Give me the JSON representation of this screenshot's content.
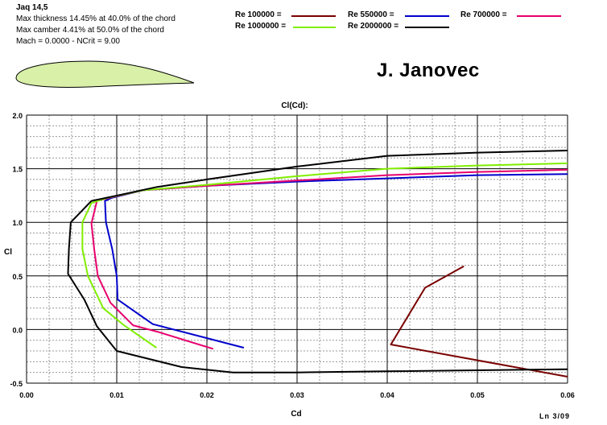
{
  "info": {
    "airfoil": "Jaq 14,5",
    "thickness": "Max thickness 14.45% at 40.0% of the chord",
    "camber": "Max camber 4.41% at 50.0% of the chord",
    "mach": "Mach = 0.0000 - NCrit = 9.00"
  },
  "author": "J. Janovec",
  "footer": "Ln 3/09",
  "colors": {
    "re100000": "#7a0000",
    "re550000": "#0000cc",
    "re700000": "#e8006e",
    "re1000000": "#80ee00",
    "re2000000": "#000000",
    "grid": "#999999",
    "airfoil_fill": "#d8f0a8"
  },
  "legend": [
    {
      "label": "Re 100000 =",
      "color": "#7a0000"
    },
    {
      "label": "Re 550000 =",
      "color": "#0000cc"
    },
    {
      "label": "Re 700000 =",
      "color": "#e8006e"
    },
    {
      "label": "Re 1000000 =",
      "color": "#80ee00"
    },
    {
      "label": "Re 2000000 =",
      "color": "#000000"
    }
  ],
  "chart_data": {
    "type": "line",
    "title": "Cl(Cd):",
    "xlabel": "Cd",
    "ylabel": "Cl",
    "xlim": [
      0.0,
      0.06
    ],
    "ylim": [
      -0.5,
      2.0
    ],
    "x_ticks": [
      "0.00",
      "0.01",
      "0.02",
      "0.03",
      "0.04",
      "0.05",
      "0.06"
    ],
    "y_ticks": [
      "-0.5",
      "0.0",
      "0.5",
      "1.0",
      "1.5",
      "2.0"
    ],
    "grid": true,
    "series": [
      {
        "name": "Re 100000",
        "color": "#7a0000",
        "points": [
          [
            0.0485,
            0.59
          ],
          [
            0.0442,
            0.39
          ],
          [
            0.0404,
            -0.14
          ],
          [
            0.06,
            -0.44
          ]
        ]
      },
      {
        "name": "Re 550000",
        "color": "#0000cc",
        "points": [
          [
            0.0241,
            -0.17
          ],
          [
            0.014,
            0.05
          ],
          [
            0.0101,
            0.28
          ],
          [
            0.01,
            0.5
          ],
          [
            0.0095,
            0.75
          ],
          [
            0.0088,
            1.0
          ],
          [
            0.0087,
            1.2
          ],
          [
            0.0095,
            1.23
          ],
          [
            0.013,
            1.3
          ],
          [
            0.02,
            1.34
          ],
          [
            0.03,
            1.38
          ],
          [
            0.04,
            1.41
          ],
          [
            0.05,
            1.44
          ],
          [
            0.06,
            1.45
          ]
        ]
      },
      {
        "name": "Re 700000",
        "color": "#e8006e",
        "points": [
          [
            0.0207,
            -0.18
          ],
          [
            0.0145,
            -0.02
          ],
          [
            0.0118,
            0.04
          ],
          [
            0.0093,
            0.25
          ],
          [
            0.0079,
            0.5
          ],
          [
            0.0075,
            0.75
          ],
          [
            0.0072,
            0.99
          ],
          [
            0.0078,
            1.2
          ],
          [
            0.0092,
            1.23
          ],
          [
            0.013,
            1.3
          ],
          [
            0.02,
            1.34
          ],
          [
            0.03,
            1.39
          ],
          [
            0.04,
            1.44
          ],
          [
            0.05,
            1.47
          ],
          [
            0.06,
            1.49
          ]
        ]
      },
      {
        "name": "Re 1000000",
        "color": "#80ee00",
        "points": [
          [
            0.0144,
            -0.17
          ],
          [
            0.0108,
            0.04
          ],
          [
            0.0085,
            0.2
          ],
          [
            0.0068,
            0.5
          ],
          [
            0.0062,
            0.75
          ],
          [
            0.0062,
            1.0
          ],
          [
            0.0072,
            1.18
          ],
          [
            0.009,
            1.23
          ],
          [
            0.013,
            1.3
          ],
          [
            0.02,
            1.35
          ],
          [
            0.03,
            1.43
          ],
          [
            0.04,
            1.5
          ],
          [
            0.05,
            1.53
          ],
          [
            0.06,
            1.55
          ]
        ]
      },
      {
        "name": "Re 2000000",
        "color": "#000000",
        "points": [
          [
            0.06,
            -0.37
          ],
          [
            0.04,
            -0.39
          ],
          [
            0.03,
            -0.4
          ],
          [
            0.0229,
            -0.4
          ],
          [
            0.0172,
            -0.35
          ],
          [
            0.01,
            -0.2
          ],
          [
            0.0078,
            0.03
          ],
          [
            0.0064,
            0.28
          ],
          [
            0.0046,
            0.52
          ],
          [
            0.0047,
            0.75
          ],
          [
            0.0049,
            1.0
          ],
          [
            0.0072,
            1.2
          ],
          [
            0.0095,
            1.24
          ],
          [
            0.0145,
            1.33
          ],
          [
            0.02,
            1.4
          ],
          [
            0.03,
            1.52
          ],
          [
            0.04,
            1.62
          ],
          [
            0.05,
            1.65
          ],
          [
            0.06,
            1.67
          ]
        ]
      }
    ]
  }
}
